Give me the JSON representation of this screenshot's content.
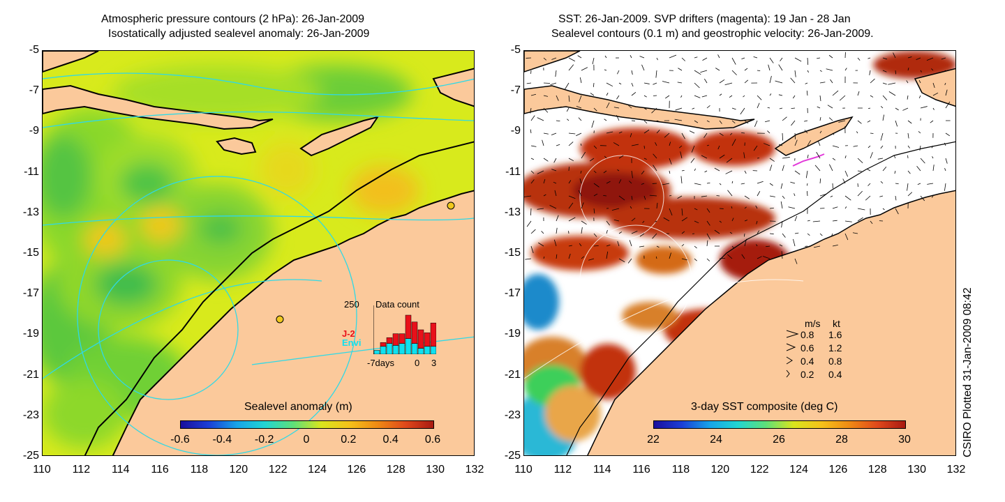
{
  "left_panel": {
    "title_line1": "Atmospheric pressure contours (2 hPa): 26-Jan-2009",
    "title_line2": "Isostatically adjusted sealevel anomaly: 26-Jan-2009",
    "colorbar_title": "Sealevel anomaly (m)",
    "colorbar_ticks": [
      "-0.6",
      "-0.4",
      "-0.2",
      "0",
      "0.2",
      "0.4",
      "0.6"
    ],
    "inset": {
      "max_label": "250",
      "title": "Data count",
      "series": [
        {
          "name": "J-2",
          "color": "#e8101a",
          "values": [
            0,
            20,
            30,
            60,
            50,
            120,
            110,
            95,
            70,
            120
          ]
        },
        {
          "name": "Envi",
          "color": "#10e0ef",
          "values": [
            20,
            40,
            55,
            45,
            55,
            80,
            55,
            30,
            40,
            40
          ]
        }
      ],
      "x_left": "-7days",
      "x_zero": "0",
      "x_right": "3"
    }
  },
  "right_panel": {
    "title_line1": "SST: 26-Jan-2009. SVP drifters (magenta): 19 Jan - 28 Jan",
    "title_line2": "Sealevel contours (0.1 m) and geostrophic velocity: 26-Jan-2009.",
    "colorbar_title": "3-day SST composite (deg C)",
    "colorbar_ticks": [
      "22",
      "24",
      "26",
      "28",
      "30"
    ],
    "velocity_legend": {
      "header_ms": "m/s",
      "header_kt": "kt",
      "rows": [
        {
          "ms": "0.8",
          "kt": "1.6"
        },
        {
          "ms": "0.6",
          "kt": "1.2"
        },
        {
          "ms": "0.4",
          "kt": "0.8"
        },
        {
          "ms": "0.2",
          "kt": "0.4"
        }
      ]
    }
  },
  "axes": {
    "y_ticks": [
      "-5",
      "-7",
      "-9",
      "-11",
      "-13",
      "-15",
      "-17",
      "-19",
      "-21",
      "-23",
      "-25"
    ],
    "x_ticks": [
      "110",
      "112",
      "114",
      "116",
      "118",
      "120",
      "122",
      "124",
      "126",
      "128",
      "130",
      "132"
    ]
  },
  "credit": "CSIRO Plotted 31-Jan-2009 08:42",
  "colors": {
    "land": "#fbc99b",
    "sla_base": "#d8ea1c",
    "sla_green": "#7ad91c",
    "sla_dark_green": "#3cc24a",
    "sla_orange": "#f3c21a",
    "contour_cyan": "#2fd9e6",
    "sst_red": "#c2330e",
    "sst_dark_red": "#8f1508",
    "sst_green": "#3ecf5a",
    "sst_cyan": "#2bb8d6"
  }
}
